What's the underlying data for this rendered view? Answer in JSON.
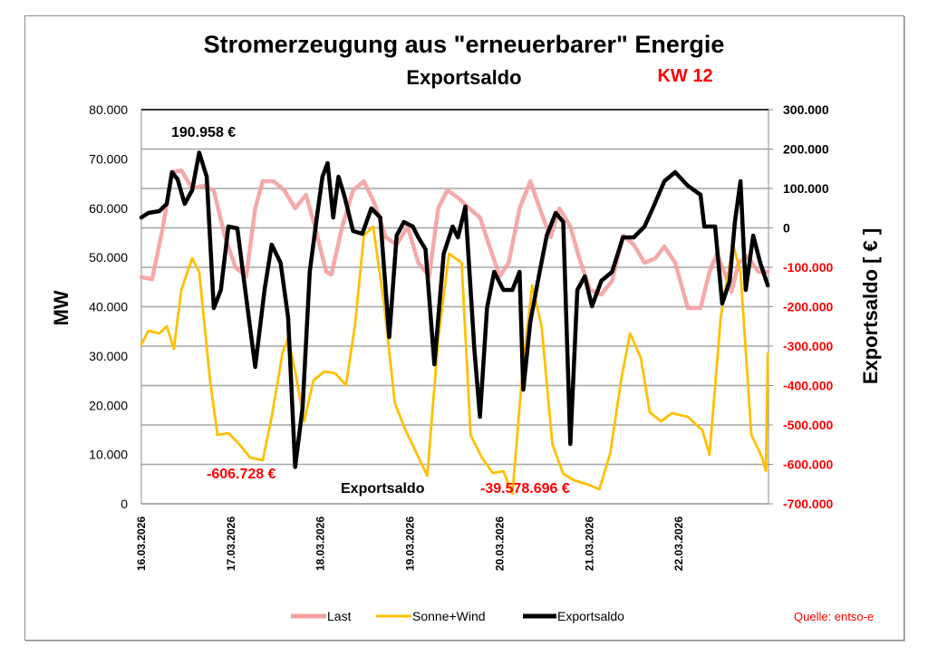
{
  "chart_data": {
    "type": "line",
    "title": "Stromerzeugung aus \"erneuerbarer\" Energie",
    "subtitle": "Exportsaldo",
    "week_label": "KW 12",
    "ylabel": "MW",
    "y2label": "Exportsaldo [ € ]",
    "ylim": [
      0,
      80000
    ],
    "y2lim": [
      -700000,
      300000
    ],
    "yticks": [
      "0",
      "10.000",
      "20.000",
      "30.000",
      "40.000",
      "50.000",
      "60.000",
      "70.000",
      "80.000"
    ],
    "y2ticks": [
      "-700.000",
      "-600.000",
      "-500.000",
      "-400.000",
      "-300.000",
      "-200.000",
      "-100.000",
      "0",
      "100.000",
      "200.000",
      "300.000"
    ],
    "xticks": [
      "16.03.2026",
      "17.03.2026",
      "18.03.2026",
      "19.03.2026",
      "20.03.2026",
      "21.03.2026",
      "22.03.2026"
    ],
    "x_unit": "hours since 16.03.2026 00:00",
    "xlim": [
      0,
      168
    ],
    "grid": true,
    "legend_position": "bottom",
    "source": "Quelle: entso-e",
    "colors": {
      "last": "#f4a0a0",
      "sonne_wind": "#ffc000",
      "exportsaldo": "#000000",
      "negative": "#ff0000",
      "grid": "#a6a6a6"
    },
    "annotations": {
      "max": "190.958 €",
      "min": "-606.728 €",
      "total_label": "Exportsaldo",
      "total_value": "-39.578.696 €"
    },
    "series": [
      {
        "name": "Last",
        "axis": "left",
        "x": [
          0,
          2.9,
          5.8,
          8.2,
          10.7,
          13.6,
          16.5,
          19.4,
          22.3,
          25.2,
          28.1,
          30.5,
          32.5,
          35.4,
          38.3,
          41.2,
          44.1,
          46.5,
          49.5,
          50.9,
          53.8,
          56.7,
          59.6,
          62.5,
          65.5,
          68.4,
          71.3,
          74.2,
          77.1,
          79.5,
          81.9,
          84.8,
          87.8,
          90.7,
          93.1,
          96.0,
          98.4,
          101.3,
          104.2,
          106.7,
          109.6,
          112.0,
          114.9,
          117.3,
          120.2,
          123.2,
          126.1,
          129.0,
          131.9,
          134.8,
          137.7,
          140.1,
          143.0,
          146.4,
          149.8,
          152.2,
          154.2,
          156.1,
          158.1,
          160.0,
          162.4,
          165.3,
          167.8
        ],
        "values": [
          45977,
          45609,
          56275,
          67309,
          67677,
          64000,
          64552,
          63632,
          54437,
          47999,
          46160,
          59953,
          65470,
          65470,
          63632,
          59953,
          62712,
          56275,
          47080,
          46529,
          56275,
          63632,
          65470,
          60873,
          54069,
          52597,
          56275,
          48918,
          46160,
          59953,
          63632,
          62160,
          59953,
          58114,
          52597,
          46160,
          48918,
          59953,
          65470,
          59953,
          54069,
          59953,
          56275,
          49838,
          43402,
          42482,
          45241,
          54437,
          52597,
          48918,
          49838,
          52229,
          48918,
          39724,
          39724,
          47080,
          50758,
          47080,
          43034,
          48918,
          50206,
          47080,
          47080
        ]
      },
      {
        "name": "Sonne+Wind",
        "axis": "left",
        "x": [
          0,
          1.9,
          4.8,
          6.8,
          8.7,
          10.7,
          13.6,
          15.5,
          18.4,
          20.4,
          23.3,
          26.2,
          29.1,
          32.5,
          34.9,
          37.8,
          39.3,
          41.2,
          43.6,
          46.1,
          49.0,
          51.9,
          54.8,
          57.2,
          59.6,
          62.1,
          65.0,
          67.9,
          70.8,
          73.7,
          76.6,
          79.5,
          82.4,
          85.8,
          88.2,
          91.2,
          94.1,
          97.0,
          99.4,
          102.3,
          104.7,
          107.2,
          110.1,
          113.0,
          115.9,
          119.8,
          122.7,
          125.6,
          128.5,
          130.9,
          133.8,
          136.2,
          139.2,
          142.1,
          146.4,
          150.3,
          152.2,
          155.2,
          158.5,
          160.5,
          163.4,
          166.3,
          167.3,
          167.8
        ],
        "values": [
          32367,
          35126,
          34574,
          36046,
          31448,
          43402,
          49838,
          47080,
          25011,
          13977,
          14345,
          12138,
          9379,
          8828,
          17655,
          30529,
          33655,
          26851,
          16736,
          25011,
          26851,
          26483,
          24092,
          36046,
          54437,
          56275,
          40643,
          20414,
          14897,
          10299,
          5701,
          33287,
          50758,
          48918,
          13977,
          9379,
          6253,
          6621,
          2023,
          28690,
          44322,
          36046,
          12138,
          6069,
          4782,
          3862,
          2943,
          10299,
          25011,
          34574,
          29609,
          18575,
          16736,
          18391,
          17655,
          14897,
          9931,
          37885,
          52597,
          47080,
          13977,
          9379,
          6621,
          30529
        ]
      },
      {
        "name": "Exportsaldo",
        "axis": "right",
        "x": [
          0,
          1.9,
          4.8,
          6.8,
          8.2,
          9.7,
          11.6,
          13.6,
          15.5,
          17.5,
          19.4,
          21.3,
          23.3,
          25.7,
          27.2,
          30.5,
          33.0,
          34.9,
          37.3,
          39.3,
          41.2,
          43.2,
          45.1,
          47.0,
          48.5,
          49.9,
          51.4,
          52.8,
          54.3,
          56.7,
          59.2,
          61.6,
          64.0,
          66.4,
          68.4,
          70.3,
          72.7,
          74.2,
          76.1,
          78.5,
          81.0,
          83.4,
          84.8,
          86.8,
          89.2,
          90.7,
          92.6,
          94.5,
          97.0,
          99.4,
          101.3,
          102.3,
          104.2,
          106.7,
          108.6,
          111.0,
          113.0,
          114.9,
          116.8,
          118.8,
          120.7,
          123.2,
          126.1,
          129.0,
          131.9,
          134.8,
          137.2,
          140.1,
          143.0,
          146.4,
          149.8,
          150.8,
          153.7,
          155.6,
          157.6,
          159.0,
          160.5,
          161.9,
          163.9,
          165.8,
          167.8
        ],
        "values": [
          26431,
          37925,
          42523,
          60914,
          141375,
          122984,
          60914,
          95398,
          190958,
          129881,
          -203459,
          -157481,
          3442,
          -1156,
          -111503,
          -352887,
          -157481,
          -42536,
          -88514,
          -226448,
          -606728,
          -456338,
          -111503,
          26431,
          129881,
          164365,
          26431,
          129881,
          83903,
          -8052,
          -14949,
          49420,
          26431,
          -277024,
          -19547,
          14937,
          3442,
          -24145,
          -54030,
          -345990,
          -65525,
          3442,
          -24145,
          54018,
          -306910,
          -479327,
          -203459,
          -111503,
          -157481,
          -157481,
          -111503,
          -410360,
          -237943,
          -111503,
          -19547,
          37925,
          14937,
          -548294,
          -157481,
          -123000,
          -198864,
          -134492,
          -111503,
          -24145,
          -24145,
          3442,
          54018,
          118387,
          141375,
          106892,
          83903,
          3442,
          3442,
          -191965,
          -134492,
          14937,
          118387,
          -157481,
          -19547,
          -88514,
          -145986
        ]
      }
    ]
  }
}
